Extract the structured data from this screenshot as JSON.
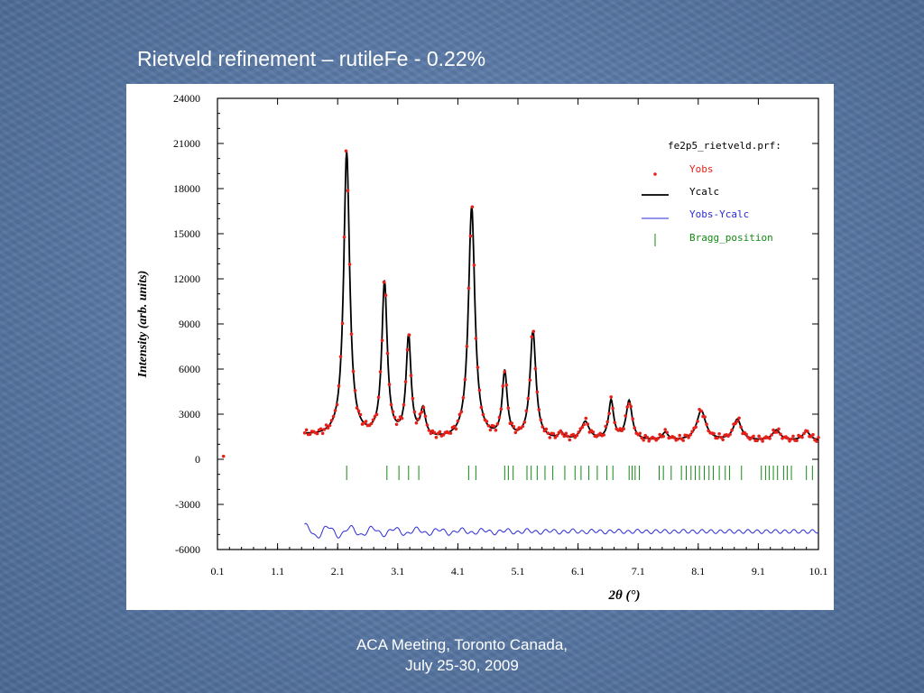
{
  "slide": {
    "title": "Rietveld refinement – rutileFe - 0.22%",
    "footer_line1": "ACA Meeting, Toronto Canada,",
    "footer_line2": "July 25-30, 2009"
  },
  "chart_data": {
    "type": "line",
    "file_label": "fe2p5_rietveld.prf:",
    "xlabel": "2θ (°)",
    "ylabel": "Intensity (arb. units)",
    "xlim": [
      0.1,
      10.1
    ],
    "ylim": [
      -6000,
      24000
    ],
    "x_ticks": [
      0.1,
      1.1,
      2.1,
      3.1,
      4.1,
      5.1,
      6.1,
      7.1,
      8.1,
      9.1,
      10.1
    ],
    "y_ticks": [
      24000,
      21000,
      18000,
      15000,
      12000,
      9000,
      6000,
      3000,
      0,
      -3000,
      -6000
    ],
    "legend_position": "top-right",
    "colors": {
      "yobs": "#e8201a",
      "ycalc": "#000000",
      "diff": "#2a2ad8",
      "bragg": "#138a13"
    },
    "background_level": 1200,
    "peaks": [
      {
        "x": 2.25,
        "height": 19000,
        "width": 0.06
      },
      {
        "x": 2.88,
        "height": 10300,
        "width": 0.055
      },
      {
        "x": 3.28,
        "height": 6700,
        "width": 0.05
      },
      {
        "x": 3.52,
        "height": 1800,
        "width": 0.05
      },
      {
        "x": 4.33,
        "height": 15500,
        "width": 0.065
      },
      {
        "x": 4.88,
        "height": 4400,
        "width": 0.05
      },
      {
        "x": 5.35,
        "height": 7200,
        "width": 0.06
      },
      {
        "x": 5.82,
        "height": 400,
        "width": 0.05
      },
      {
        "x": 6.22,
        "height": 1200,
        "width": 0.08
      },
      {
        "x": 6.65,
        "height": 2600,
        "width": 0.05
      },
      {
        "x": 6.95,
        "height": 2600,
        "width": 0.06
      },
      {
        "x": 7.55,
        "height": 500,
        "width": 0.06
      },
      {
        "x": 8.15,
        "height": 2000,
        "width": 0.09
      },
      {
        "x": 8.75,
        "height": 1400,
        "width": 0.08
      },
      {
        "x": 9.4,
        "height": 700,
        "width": 0.08
      },
      {
        "x": 9.9,
        "height": 600,
        "width": 0.08
      }
    ],
    "series": [
      {
        "name": "Yobs",
        "marker": "dot"
      },
      {
        "name": "Ycalc",
        "line": "solid"
      },
      {
        "name": "Yobs-Ycalc",
        "line": "thin"
      },
      {
        "name": "Bragg_position",
        "marker": "tick"
      }
    ],
    "diff_curve_offset": -4800,
    "bragg_row_y": -900,
    "bragg_positions": [
      2.25,
      2.92,
      3.12,
      3.28,
      3.45,
      4.28,
      4.4,
      4.88,
      4.94,
      5.02,
      5.25,
      5.32,
      5.42,
      5.55,
      5.68,
      5.88,
      6.05,
      6.15,
      6.28,
      6.42,
      6.58,
      6.68,
      6.95,
      7.0,
      7.05,
      7.12,
      7.45,
      7.52,
      7.65,
      7.82,
      7.9,
      7.98,
      8.05,
      8.12,
      8.2,
      8.28,
      8.35,
      8.45,
      8.55,
      8.62,
      8.82,
      9.15,
      9.22,
      9.28,
      9.35,
      9.42,
      9.52,
      9.58,
      9.65,
      9.9,
      10.0
    ]
  }
}
